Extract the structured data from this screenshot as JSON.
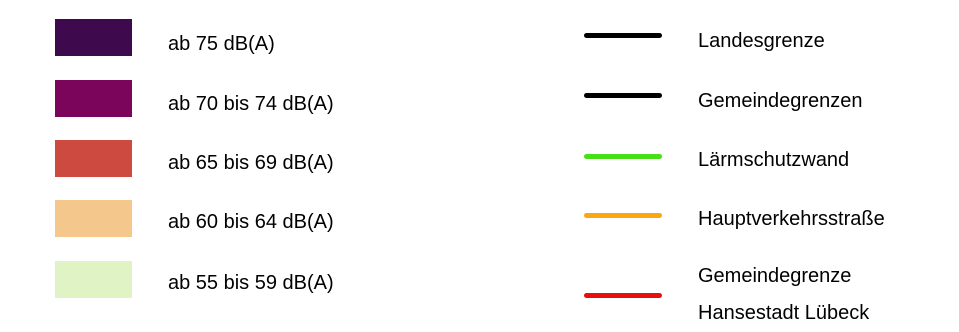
{
  "noise_classes": [
    {
      "label": "ab 75 dB(A)",
      "color": "#3f0a4d"
    },
    {
      "label": "ab 70 bis 74 dB(A)",
      "color": "#7b055b"
    },
    {
      "label": "ab 65 bis 69 dB(A)",
      "color": "#cd4a40"
    },
    {
      "label": "ab 60 bis 64 dB(A)",
      "color": "#f4c88c"
    },
    {
      "label": "ab 55 bis 59 dB(A)",
      "color": "#e0f3c5"
    }
  ],
  "line_types": [
    {
      "label": "Landesgrenze",
      "color": "#000000"
    },
    {
      "label": "Gemeindegrenzen",
      "color": "#000000"
    },
    {
      "label": "Lärmschutzwand",
      "color": "#48df1a"
    },
    {
      "label": "Hauptverkehrsstraße",
      "color": "#fba70f"
    },
    {
      "label_line1": "Gemeindegrenze",
      "label_line2": "Hansestadt Lübeck",
      "color": "#ea0f0f"
    }
  ]
}
